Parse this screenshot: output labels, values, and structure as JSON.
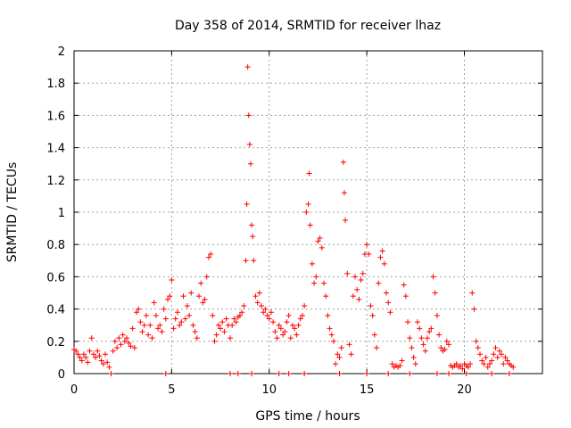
{
  "chart_data": {
    "type": "scatter",
    "title": "Day 358 of 2014, SRMTID for receiver lhaz",
    "xlabel": "GPS time / hours",
    "ylabel": "SRMTID / TECUs",
    "xlim": [
      0,
      24
    ],
    "ylim": [
      0,
      2
    ],
    "xticks": [
      "0",
      "5",
      "10",
      "15",
      "20"
    ],
    "yticks": [
      "0",
      "0.2",
      "0.4",
      "0.6",
      "0.8",
      "1",
      "1.2",
      "1.4",
      "1.6",
      "1.8",
      "2"
    ],
    "grid": true,
    "marker": "+",
    "color": "#ff0000",
    "series": [
      {
        "name": "lhaz",
        "points": [
          [
            0.0,
            0.15
          ],
          [
            0.1,
            0.14
          ],
          [
            0.2,
            0.12
          ],
          [
            0.3,
            0.1
          ],
          [
            0.4,
            0.08
          ],
          [
            0.5,
            0.12
          ],
          [
            0.6,
            0.1
          ],
          [
            0.7,
            0.07
          ],
          [
            0.8,
            0.14
          ],
          [
            0.9,
            0.22
          ],
          [
            1.0,
            0.12
          ],
          [
            1.1,
            0.1
          ],
          [
            1.2,
            0.14
          ],
          [
            1.3,
            0.11
          ],
          [
            1.4,
            0.08
          ],
          [
            1.5,
            0.06
          ],
          [
            1.6,
            0.12
          ],
          [
            1.7,
            0.07
          ],
          [
            1.8,
            0.04
          ],
          [
            1.9,
            0.0
          ],
          [
            2.0,
            0.14
          ],
          [
            2.1,
            0.2
          ],
          [
            2.2,
            0.16
          ],
          [
            2.3,
            0.22
          ],
          [
            2.4,
            0.18
          ],
          [
            2.5,
            0.24
          ],
          [
            2.6,
            0.2
          ],
          [
            2.7,
            0.22
          ],
          [
            2.8,
            0.19
          ],
          [
            2.9,
            0.17
          ],
          [
            3.0,
            0.28
          ],
          [
            3.1,
            0.16
          ],
          [
            3.2,
            0.38
          ],
          [
            3.3,
            0.4
          ],
          [
            3.4,
            0.32
          ],
          [
            3.5,
            0.26
          ],
          [
            3.6,
            0.3
          ],
          [
            3.7,
            0.36
          ],
          [
            3.8,
            0.24
          ],
          [
            3.9,
            0.3
          ],
          [
            4.0,
            0.22
          ],
          [
            4.1,
            0.44
          ],
          [
            4.2,
            0.36
          ],
          [
            4.3,
            0.28
          ],
          [
            4.4,
            0.3
          ],
          [
            4.5,
            0.26
          ],
          [
            4.6,
            0.4
          ],
          [
            4.7,
            0.34
          ],
          [
            4.8,
            0.46
          ],
          [
            4.9,
            0.48
          ],
          [
            5.0,
            0.58
          ],
          [
            5.1,
            0.28
          ],
          [
            5.2,
            0.34
          ],
          [
            5.3,
            0.38
          ],
          [
            5.4,
            0.3
          ],
          [
            5.5,
            0.32
          ],
          [
            5.6,
            0.48
          ],
          [
            5.7,
            0.34
          ],
          [
            5.8,
            0.42
          ],
          [
            5.9,
            0.36
          ],
          [
            6.0,
            0.5
          ],
          [
            6.1,
            0.3
          ],
          [
            6.2,
            0.26
          ],
          [
            6.3,
            0.22
          ],
          [
            6.4,
            0.48
          ],
          [
            6.5,
            0.56
          ],
          [
            6.6,
            0.44
          ],
          [
            6.7,
            0.46
          ],
          [
            6.8,
            0.6
          ],
          [
            6.9,
            0.72
          ],
          [
            7.0,
            0.74
          ],
          [
            7.1,
            0.36
          ],
          [
            7.2,
            0.2
          ],
          [
            7.3,
            0.24
          ],
          [
            7.4,
            0.3
          ],
          [
            7.5,
            0.28
          ],
          [
            7.6,
            0.32
          ],
          [
            7.7,
            0.26
          ],
          [
            7.8,
            0.34
          ],
          [
            7.9,
            0.3
          ],
          [
            8.0,
            0.22
          ],
          [
            8.1,
            0.3
          ],
          [
            8.2,
            0.34
          ],
          [
            8.3,
            0.32
          ],
          [
            8.4,
            0.35
          ],
          [
            8.5,
            0.36
          ],
          [
            8.6,
            0.38
          ],
          [
            8.7,
            0.42
          ],
          [
            8.8,
            0.7
          ],
          [
            8.85,
            1.05
          ],
          [
            8.9,
            1.9
          ],
          [
            8.95,
            1.6
          ],
          [
            9.0,
            1.42
          ],
          [
            9.05,
            1.3
          ],
          [
            9.1,
            0.92
          ],
          [
            9.15,
            0.85
          ],
          [
            9.2,
            0.7
          ],
          [
            9.3,
            0.48
          ],
          [
            9.4,
            0.44
          ],
          [
            9.5,
            0.5
          ],
          [
            9.6,
            0.42
          ],
          [
            9.7,
            0.38
          ],
          [
            9.8,
            0.4
          ],
          [
            9.9,
            0.36
          ],
          [
            10.0,
            0.34
          ],
          [
            10.1,
            0.38
          ],
          [
            10.2,
            0.32
          ],
          [
            10.3,
            0.26
          ],
          [
            10.4,
            0.22
          ],
          [
            10.5,
            0.3
          ],
          [
            10.6,
            0.28
          ],
          [
            10.7,
            0.24
          ],
          [
            10.8,
            0.26
          ],
          [
            10.9,
            0.32
          ],
          [
            11.0,
            0.36
          ],
          [
            11.1,
            0.22
          ],
          [
            11.2,
            0.3
          ],
          [
            11.3,
            0.28
          ],
          [
            11.4,
            0.24
          ],
          [
            11.5,
            0.3
          ],
          [
            11.6,
            0.34
          ],
          [
            11.7,
            0.36
          ],
          [
            11.8,
            0.42
          ],
          [
            11.9,
            1.0
          ],
          [
            12.0,
            1.05
          ],
          [
            12.05,
            1.24
          ],
          [
            12.1,
            0.92
          ],
          [
            12.2,
            0.68
          ],
          [
            12.3,
            0.56
          ],
          [
            12.4,
            0.6
          ],
          [
            12.5,
            0.82
          ],
          [
            12.6,
            0.84
          ],
          [
            12.7,
            0.78
          ],
          [
            12.8,
            0.56
          ],
          [
            12.9,
            0.48
          ],
          [
            13.0,
            0.36
          ],
          [
            13.1,
            0.28
          ],
          [
            13.2,
            0.24
          ],
          [
            13.3,
            0.2
          ],
          [
            13.4,
            0.06
          ],
          [
            13.5,
            0.12
          ],
          [
            13.6,
            0.1
          ],
          [
            13.7,
            0.16
          ],
          [
            13.8,
            1.31
          ],
          [
            13.85,
            1.12
          ],
          [
            13.9,
            0.95
          ],
          [
            14.0,
            0.62
          ],
          [
            14.1,
            0.18
          ],
          [
            14.2,
            0.12
          ],
          [
            14.3,
            0.48
          ],
          [
            14.4,
            0.6
          ],
          [
            14.5,
            0.52
          ],
          [
            14.6,
            0.46
          ],
          [
            14.7,
            0.58
          ],
          [
            14.8,
            0.62
          ],
          [
            14.9,
            0.74
          ],
          [
            15.0,
            0.8
          ],
          [
            15.1,
            0.74
          ],
          [
            15.2,
            0.42
          ],
          [
            15.3,
            0.36
          ],
          [
            15.4,
            0.24
          ],
          [
            15.5,
            0.16
          ],
          [
            15.6,
            0.56
          ],
          [
            15.7,
            0.72
          ],
          [
            15.8,
            0.76
          ],
          [
            15.9,
            0.68
          ],
          [
            16.0,
            0.5
          ],
          [
            16.1,
            0.44
          ],
          [
            16.2,
            0.38
          ],
          [
            16.3,
            0.06
          ],
          [
            16.4,
            0.04
          ],
          [
            16.5,
            0.05
          ],
          [
            16.6,
            0.04
          ],
          [
            16.7,
            0.05
          ],
          [
            16.8,
            0.08
          ],
          [
            16.9,
            0.55
          ],
          [
            17.0,
            0.48
          ],
          [
            17.1,
            0.32
          ],
          [
            17.2,
            0.22
          ],
          [
            17.3,
            0.16
          ],
          [
            17.4,
            0.1
          ],
          [
            17.5,
            0.06
          ],
          [
            17.6,
            0.32
          ],
          [
            17.7,
            0.28
          ],
          [
            17.8,
            0.22
          ],
          [
            17.9,
            0.18
          ],
          [
            18.0,
            0.14
          ],
          [
            18.1,
            0.22
          ],
          [
            18.2,
            0.26
          ],
          [
            18.3,
            0.28
          ],
          [
            18.4,
            0.6
          ],
          [
            18.5,
            0.5
          ],
          [
            18.6,
            0.36
          ],
          [
            18.7,
            0.24
          ],
          [
            18.8,
            0.16
          ],
          [
            18.9,
            0.14
          ],
          [
            19.0,
            0.15
          ],
          [
            19.1,
            0.2
          ],
          [
            19.2,
            0.18
          ],
          [
            19.3,
            0.05
          ],
          [
            19.4,
            0.04
          ],
          [
            19.5,
            0.05
          ],
          [
            19.6,
            0.06
          ],
          [
            19.7,
            0.04
          ],
          [
            19.8,
            0.05
          ],
          [
            19.9,
            0.03
          ],
          [
            20.0,
            0.06
          ],
          [
            20.1,
            0.05
          ],
          [
            20.2,
            0.04
          ],
          [
            20.3,
            0.06
          ],
          [
            20.4,
            0.5
          ],
          [
            20.5,
            0.4
          ],
          [
            20.6,
            0.2
          ],
          [
            20.7,
            0.16
          ],
          [
            20.8,
            0.12
          ],
          [
            20.9,
            0.08
          ],
          [
            21.0,
            0.06
          ],
          [
            21.1,
            0.1
          ],
          [
            21.2,
            0.04
          ],
          [
            21.3,
            0.06
          ],
          [
            21.4,
            0.08
          ],
          [
            21.5,
            0.12
          ],
          [
            21.6,
            0.16
          ],
          [
            21.7,
            0.1
          ],
          [
            21.8,
            0.14
          ],
          [
            21.9,
            0.12
          ],
          [
            22.0,
            0.06
          ],
          [
            22.1,
            0.1
          ],
          [
            22.2,
            0.08
          ],
          [
            22.3,
            0.06
          ],
          [
            22.4,
            0.05
          ],
          [
            22.5,
            0.04
          ],
          [
            4.7,
            0.0
          ],
          [
            8.0,
            0.0
          ],
          [
            8.4,
            0.0
          ],
          [
            9.1,
            0.0
          ],
          [
            10.5,
            0.0
          ],
          [
            11.0,
            0.0
          ],
          [
            11.8,
            0.0
          ],
          [
            13.6,
            0.0
          ],
          [
            15.0,
            0.0
          ],
          [
            16.1,
            0.0
          ],
          [
            17.2,
            0.0
          ],
          [
            18.6,
            0.0
          ],
          [
            19.2,
            0.0
          ],
          [
            20.1,
            0.0
          ],
          [
            21.4,
            0.0
          ],
          [
            22.3,
            0.0
          ]
        ]
      }
    ]
  }
}
